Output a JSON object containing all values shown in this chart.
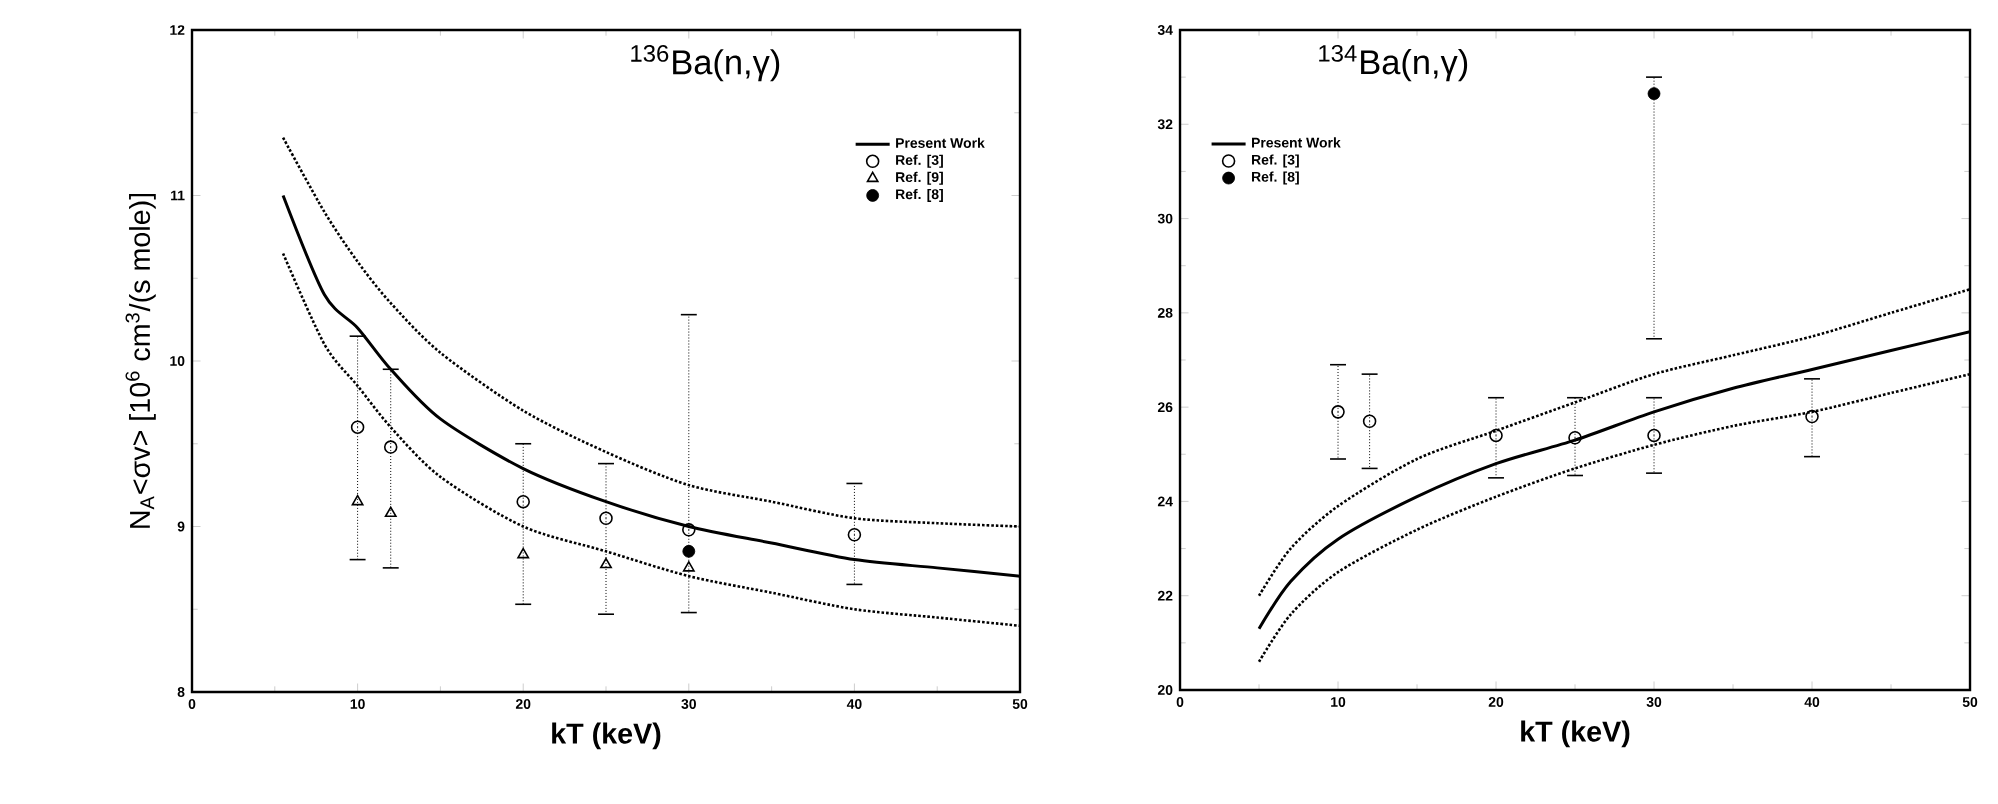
{
  "chart_data": [
    {
      "type": "line",
      "title": "$^{136}$Ba(n,γ)",
      "xlabel": "kT (keV)",
      "ylabel": "N$_{A}$<σv> [10$^{6}$ cm$^{3}$/(s mole)]",
      "xlim": [
        0,
        50
      ],
      "ylim": [
        8,
        12
      ],
      "xticks": [
        0,
        10,
        20,
        30,
        40,
        50
      ],
      "yticks": [
        8,
        9,
        10,
        11,
        12
      ],
      "legend": "top right",
      "series": [
        {
          "name": "Present Work",
          "color": "#000000",
          "line_style": "solid",
          "marker": "none",
          "x": [
            5.5,
            8,
            10,
            12,
            15,
            20,
            25,
            30,
            35,
            40,
            45,
            50
          ],
          "values": [
            11.0,
            10.4,
            10.2,
            9.95,
            9.65,
            9.35,
            9.15,
            9.0,
            8.9,
            8.8,
            8.75,
            8.7
          ]
        },
        {
          "color": "#000000",
          "line_style": "dotted",
          "marker": "none",
          "x": [
            5.5,
            8,
            10,
            12,
            15,
            20,
            25,
            30,
            35,
            40,
            45,
            50
          ],
          "values": [
            11.35,
            10.9,
            10.6,
            10.35,
            10.05,
            9.7,
            9.45,
            9.25,
            9.15,
            9.05,
            9.02,
            9.0
          ]
        },
        {
          "color": "#000000",
          "line_style": "dotted",
          "marker": "none",
          "x": [
            5.5,
            8,
            10,
            12,
            15,
            20,
            25,
            30,
            35,
            40,
            45,
            50
          ],
          "values": [
            10.65,
            10.1,
            9.85,
            9.6,
            9.3,
            9.0,
            8.85,
            8.7,
            8.6,
            8.5,
            8.45,
            8.4
          ]
        },
        {
          "name": "Ref. [3]",
          "type": "scatter",
          "color": "#000000",
          "marker": "circle",
          "x": [
            10,
            12,
            20,
            25,
            30,
            40
          ],
          "values": [
            9.6,
            9.48,
            9.15,
            9.05,
            8.98,
            8.95
          ],
          "errors": [
            [
              8.8,
              10.15
            ],
            [
              8.75,
              9.95
            ],
            [
              8.53,
              9.5
            ],
            [
              8.47,
              9.38
            ],
            [
              8.48,
              10.28
            ],
            [
              8.65,
              9.26
            ]
          ]
        },
        {
          "name": "Ref. [9]",
          "type": "scatter",
          "color": "#000000",
          "marker": "triangle",
          "x": [
            10,
            12,
            20,
            25,
            30
          ],
          "values": [
            9.15,
            9.08,
            8.83,
            8.77,
            8.75
          ]
        },
        {
          "name": "Ref. [8]",
          "type": "scatter",
          "color": "#000000",
          "marker": "filled circle",
          "x": [
            30
          ],
          "values": [
            8.85
          ]
        }
      ]
    },
    {
      "type": "line",
      "title": "$^{134}$Ba(n,γ)",
      "xlabel": "kT (keV)",
      "xlim": [
        0,
        50
      ],
      "ylim": [
        20,
        34
      ],
      "xticks": [
        0,
        10,
        20,
        30,
        40,
        50
      ],
      "yticks": [
        20,
        22,
        24,
        26,
        28,
        30,
        32,
        34
      ],
      "legend": "top left",
      "series": [
        {
          "name": "Present Work",
          "color": "#000000",
          "line_style": "solid",
          "marker": "none",
          "x": [
            5,
            7,
            10,
            15,
            20,
            25,
            30,
            35,
            40,
            45,
            50
          ],
          "values": [
            21.3,
            22.3,
            23.2,
            24.1,
            24.8,
            25.3,
            25.9,
            26.4,
            26.8,
            27.2,
            27.6
          ]
        },
        {
          "color": "#000000",
          "line_style": "dotted",
          "marker": "none",
          "x": [
            5,
            7,
            10,
            15,
            20,
            25,
            30,
            35,
            40,
            45,
            50
          ],
          "values": [
            22.0,
            23.0,
            23.9,
            24.9,
            25.5,
            26.1,
            26.7,
            27.1,
            27.5,
            28.0,
            28.5
          ]
        },
        {
          "color": "#000000",
          "line_style": "dotted",
          "marker": "none",
          "x": [
            5,
            7,
            10,
            15,
            20,
            25,
            30,
            35,
            40,
            45,
            50
          ],
          "values": [
            20.6,
            21.6,
            22.5,
            23.4,
            24.1,
            24.7,
            25.2,
            25.6,
            25.9,
            26.3,
            26.7
          ]
        },
        {
          "name": "Ref. [3]",
          "type": "scatter",
          "color": "#000000",
          "marker": "circle",
          "x": [
            10,
            12,
            20,
            25,
            30,
            40
          ],
          "values": [
            25.9,
            25.7,
            25.4,
            25.35,
            25.4,
            25.8
          ],
          "errors": [
            [
              24.9,
              26.9
            ],
            [
              24.7,
              26.7
            ],
            [
              24.5,
              26.2
            ],
            [
              24.55,
              26.2
            ],
            [
              24.6,
              26.2
            ],
            [
              24.95,
              26.6
            ]
          ]
        },
        {
          "name": "Ref. [8]",
          "type": "scatter",
          "color": "#000000",
          "marker": "filled circle",
          "x": [
            30
          ],
          "values": [
            32.65
          ],
          "errors": [
            [
              27.45,
              33.0
            ]
          ]
        }
      ]
    }
  ]
}
